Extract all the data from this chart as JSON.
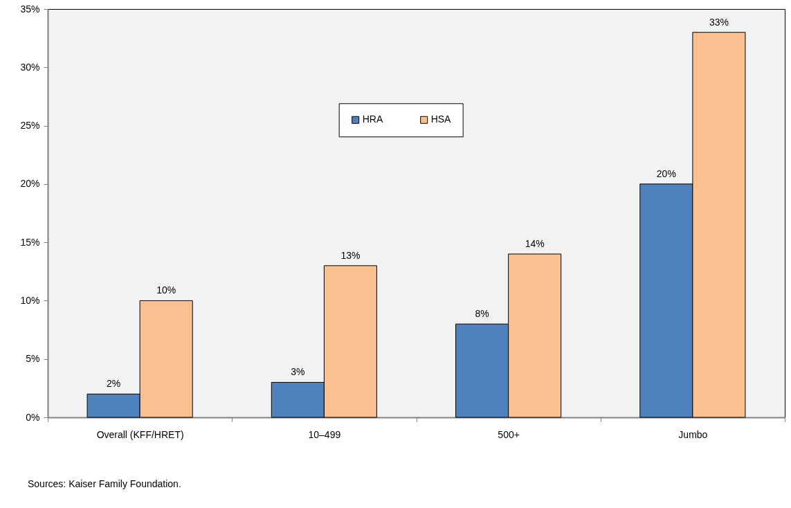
{
  "chart_data": {
    "type": "bar",
    "categories": [
      "Overall (KFF/HRET)",
      "10–499",
      "500+",
      "Jumbo"
    ],
    "series": [
      {
        "name": "HRA",
        "color": "#4f81bd",
        "values": [
          2,
          3,
          8,
          20
        ],
        "value_labels": [
          "2%",
          "3%",
          "8%",
          "20%"
        ]
      },
      {
        "name": "HSA",
        "color": "#fac090",
        "values": [
          10,
          13,
          14,
          33
        ],
        "value_labels": [
          "10%",
          "13%",
          "14%",
          "33%"
        ]
      }
    ],
    "ylim": [
      0,
      35
    ],
    "yticks": [
      {
        "value": 0,
        "label": "0%"
      },
      {
        "value": 5,
        "label": "5%"
      },
      {
        "value": 10,
        "label": "10%"
      },
      {
        "value": 15,
        "label": "15%"
      },
      {
        "value": 20,
        "label": "20%"
      },
      {
        "value": 25,
        "label": "25%"
      },
      {
        "value": 30,
        "label": "30%"
      },
      {
        "value": 35,
        "label": "35%"
      }
    ],
    "legend": "top",
    "annotations": [
      "Sources: Kaiser Family Foundation."
    ]
  }
}
